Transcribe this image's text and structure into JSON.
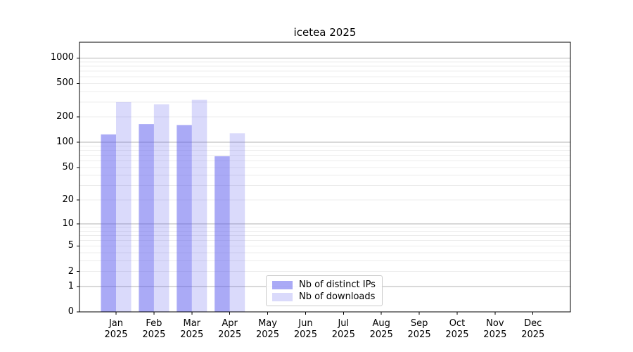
{
  "title": "icetea 2025",
  "legend": {
    "items": [
      {
        "label": "Nb of distinct IPs"
      },
      {
        "label": "Nb of downloads"
      }
    ]
  },
  "colors": {
    "distinct_ips": "rgba(85,85,238,0.5)",
    "downloads": "rgba(85,85,238,0.22)",
    "major_grid": "#b3b3b3",
    "minor_grid": "#ececec",
    "axis": "#000000",
    "legend_border": "#cccccc"
  },
  "chart_data": {
    "type": "bar",
    "title": "icetea 2025",
    "categories": [
      "Jan",
      "Feb",
      "Mar",
      "Apr",
      "May",
      "Jun",
      "Jul",
      "Aug",
      "Sep",
      "Oct",
      "Nov",
      "Dec"
    ],
    "x_tick_year": "2025",
    "series": [
      {
        "name": "Nb of distinct IPs",
        "values": [
          124,
          165,
          160,
          68,
          0,
          0,
          0,
          0,
          0,
          0,
          0,
          0
        ]
      },
      {
        "name": "Nb of downloads",
        "values": [
          300,
          282,
          320,
          128,
          0,
          0,
          0,
          0,
          0,
          0,
          0,
          0
        ]
      }
    ],
    "y_ticks": [
      0,
      1,
      2,
      5,
      10,
      20,
      50,
      100,
      200,
      500,
      1000
    ],
    "y_scale": "log10(1+v)",
    "ylim": [
      0,
      1530
    ],
    "grid": true,
    "legend_position": "lower center",
    "xlabel": "",
    "ylabel": ""
  }
}
